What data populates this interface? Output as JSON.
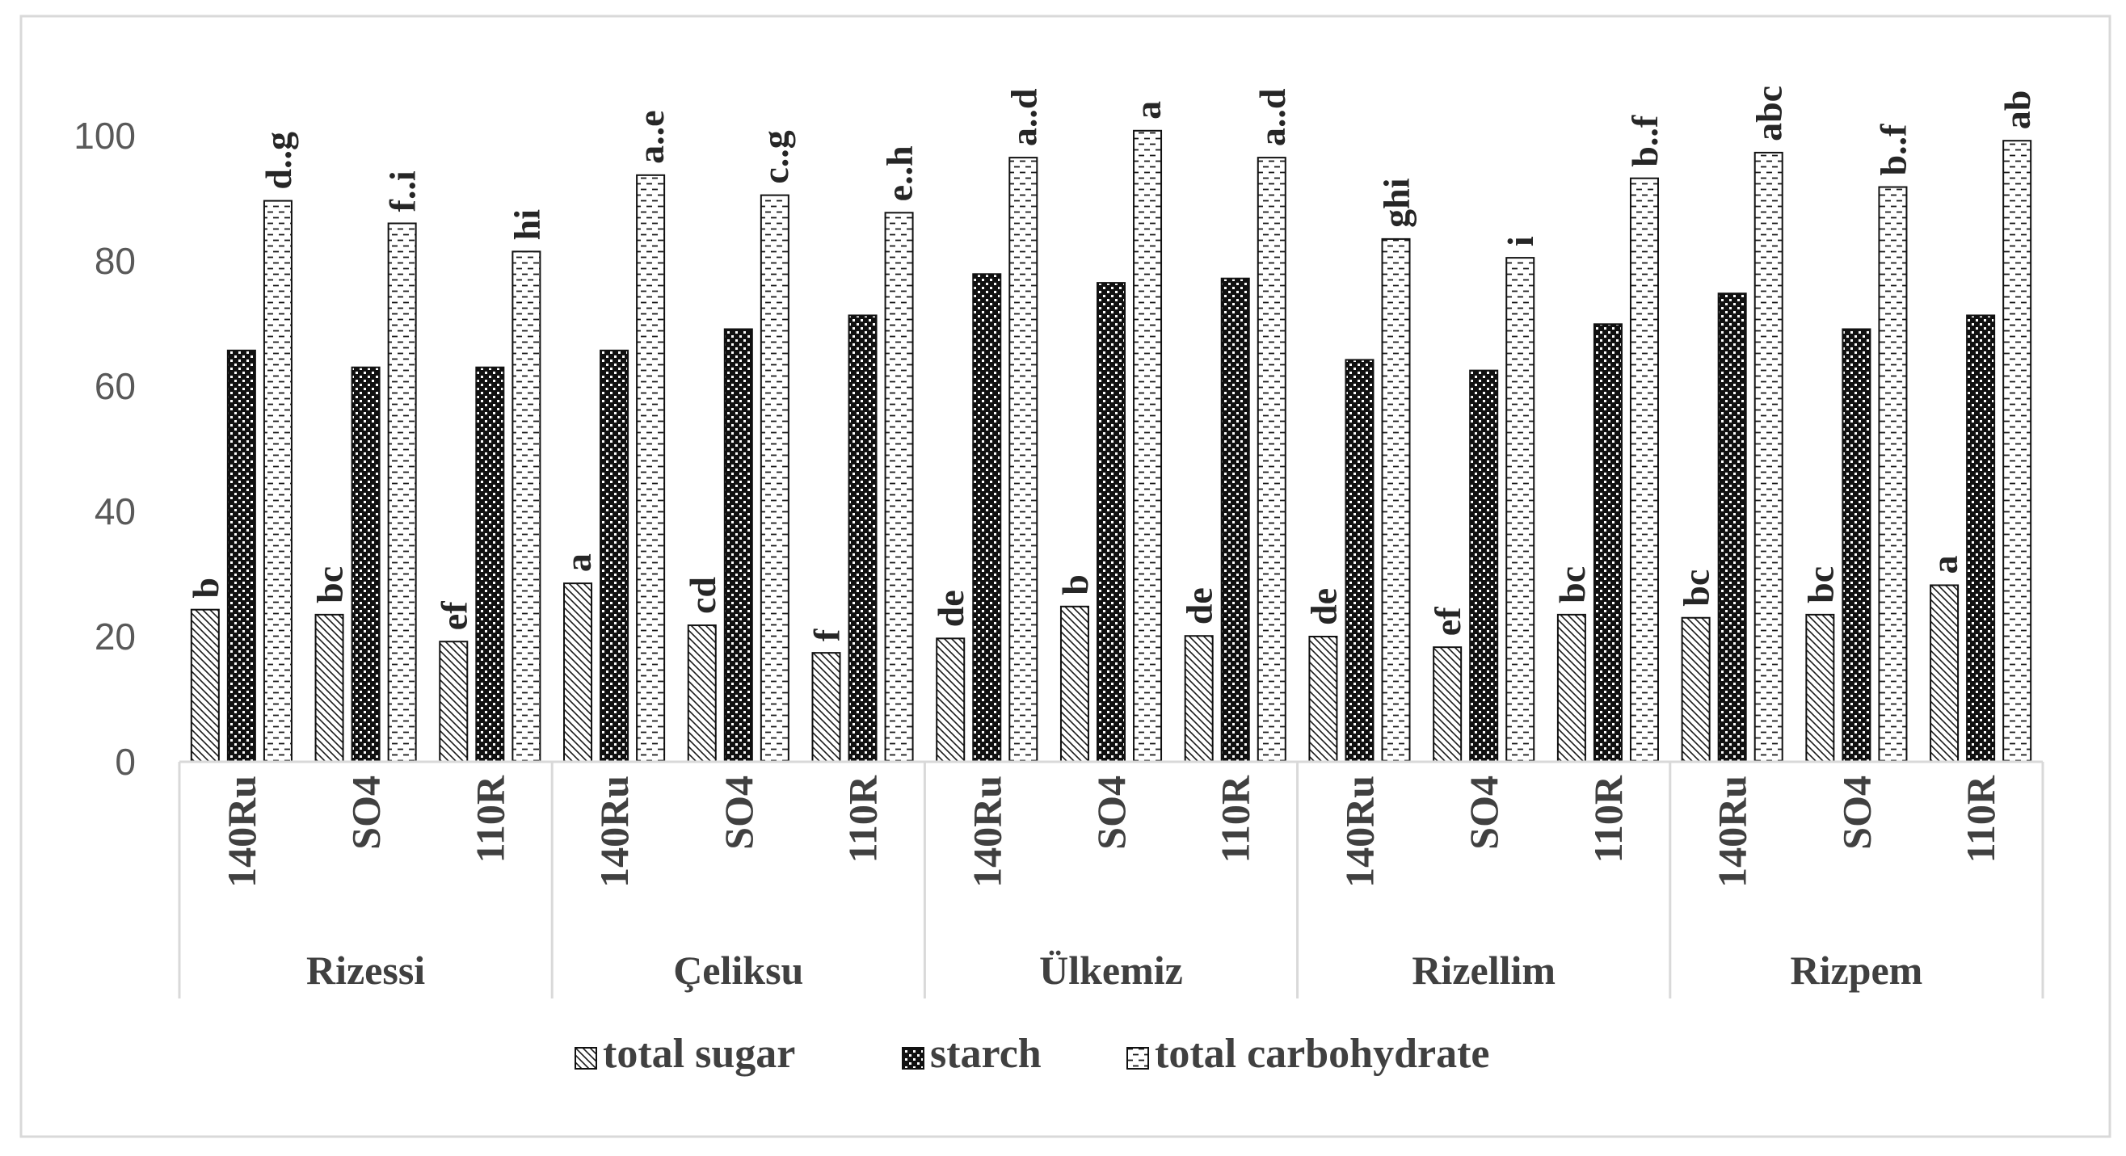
{
  "chart_data": {
    "type": "bar",
    "title": "",
    "xlabel": "",
    "ylabel": "",
    "ylim": [
      0,
      120
    ],
    "yticks": [
      0,
      20,
      40,
      60,
      80,
      100
    ],
    "grid": false,
    "legend_position": "bottom",
    "groups": [
      "Rizessi",
      "Çeliksu",
      "Ülkemiz",
      "Rizellim",
      "Rizpem"
    ],
    "subcategories": [
      "140Ru",
      "SO4",
      "110R"
    ],
    "series": [
      {
        "name": "total sugar",
        "pattern": "diagonal",
        "values": [
          24.3,
          23.5,
          19.2,
          28.5,
          21.8,
          17.4,
          19.7,
          24.8,
          20.1,
          20.0,
          18.3,
          23.5,
          23.0,
          23.5,
          28.2
        ],
        "labels": [
          "b",
          "bc",
          "ef",
          "a",
          "cd",
          "f",
          "de",
          "b",
          "de",
          "de",
          "ef",
          "bc",
          "bc",
          "bc",
          "a"
        ]
      },
      {
        "name": "starch",
        "pattern": "checker",
        "values": [
          65.7,
          63.0,
          63.0,
          65.7,
          69.1,
          71.3,
          77.9,
          76.5,
          77.2,
          64.2,
          62.5,
          69.9,
          74.8,
          69.1,
          71.3
        ],
        "labels": []
      },
      {
        "name": "total carbohydrate",
        "pattern": "dashes",
        "values": [
          89.6,
          86.0,
          81.5,
          93.7,
          90.5,
          87.7,
          96.5,
          100.8,
          96.5,
          83.5,
          80.5,
          93.2,
          97.3,
          91.8,
          99.2
        ],
        "labels": [
          "d..g",
          "f..i",
          "hi",
          "a..e",
          "c..g",
          "e..h",
          "a..d",
          "a",
          "a..d",
          "ghi",
          "i",
          "b..f",
          "abc",
          "b..f",
          "ab"
        ]
      }
    ]
  }
}
